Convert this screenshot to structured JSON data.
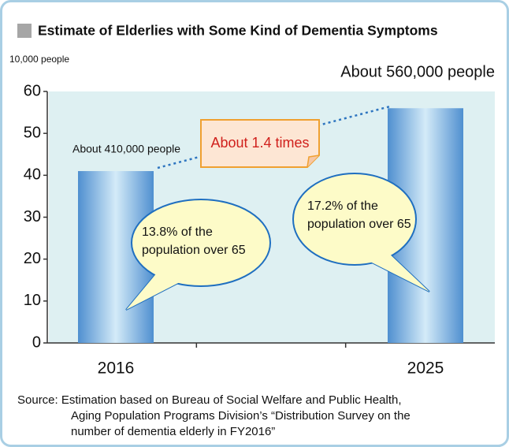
{
  "chart_data": {
    "type": "bar",
    "title": "Estimate of Elderlies with Some Kind of Dementia Symptoms",
    "y_axis_label": "10,000 people",
    "categories": [
      "2016",
      "2025"
    ],
    "values": [
      41,
      56
    ],
    "value_labels": [
      "About 410,000 people",
      "About 560,000 people"
    ],
    "color": "#5b9bd5",
    "ylim": [
      0,
      60
    ],
    "yticks": [
      0,
      10,
      20,
      30,
      40,
      50,
      60
    ],
    "annotations": [
      "About 1.4 times"
    ],
    "callouts": [
      [
        "13.8% of the",
        "population over 65"
      ],
      [
        "17.2% of the",
        "population over 65"
      ]
    ],
    "source": [
      "Source: Estimation based on Bureau of Social Welfare and Public Health,",
      "Aging Population Programs Division’s “Distribution Survey on the",
      "number of dementia elderly in FY2016”"
    ]
  }
}
